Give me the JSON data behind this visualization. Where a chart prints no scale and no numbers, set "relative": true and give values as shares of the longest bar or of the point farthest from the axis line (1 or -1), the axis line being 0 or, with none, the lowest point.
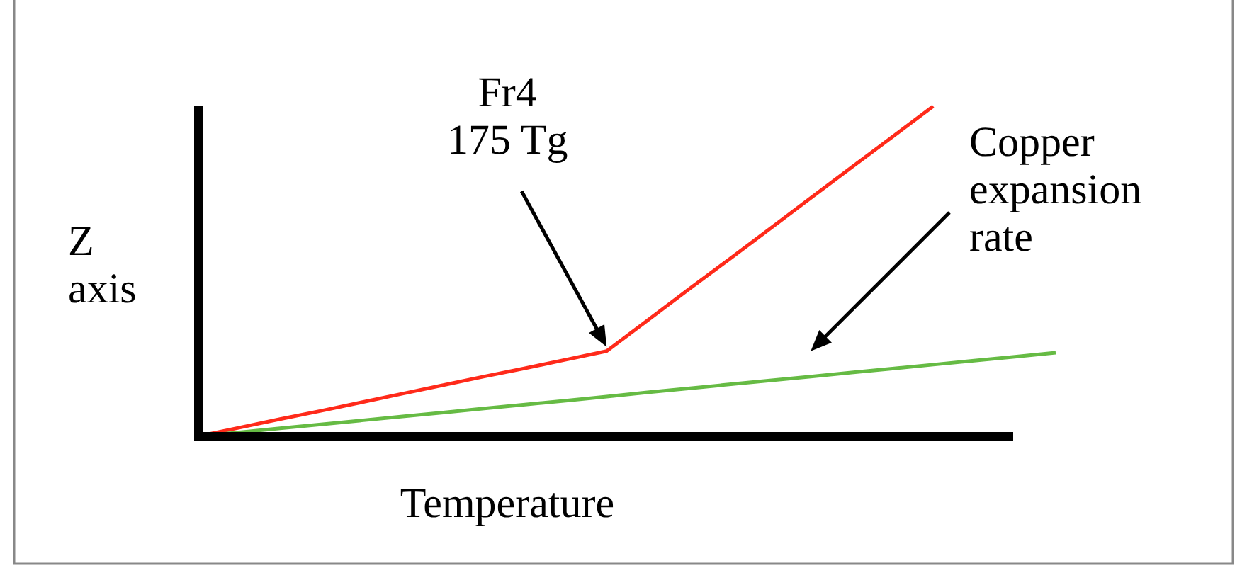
{
  "chart_data": {
    "type": "line",
    "relative": true,
    "xlabel": "Temperature",
    "ylabel": "Z axis",
    "legend": false,
    "marker": "none",
    "line_style": "solid",
    "categories": [
      null,
      null,
      null,
      null,
      null,
      null,
      null,
      null,
      null,
      null,
      null,
      null,
      null,
      null,
      null,
      null,
      null,
      null,
      null,
      null,
      null,
      null
    ],
    "series": [
      {
        "color": "#ff2a1a",
        "values": [
          0,
          0.026,
          0.052,
          0.077,
          0.103,
          0.129,
          0.155,
          0.181,
          0.206,
          0.232,
          0.258,
          0.351,
          0.444,
          0.536,
          0.629,
          0.722,
          0.815,
          0.907,
          1,
          null,
          null,
          null
        ]
      },
      {
        "name": "Copper expansion rate",
        "color": "#66bb44",
        "values": [
          0,
          0.012,
          0.024,
          0.036,
          0.048,
          0.06,
          0.072,
          0.084,
          0.096,
          0.108,
          0.12,
          0.133,
          0.145,
          0.157,
          0.169,
          0.181,
          0.193,
          0.205,
          0.217,
          0.229,
          0.241,
          0.253
        ]
      }
    ],
    "annotations": [
      "Fr4 175 Tg"
    ]
  }
}
